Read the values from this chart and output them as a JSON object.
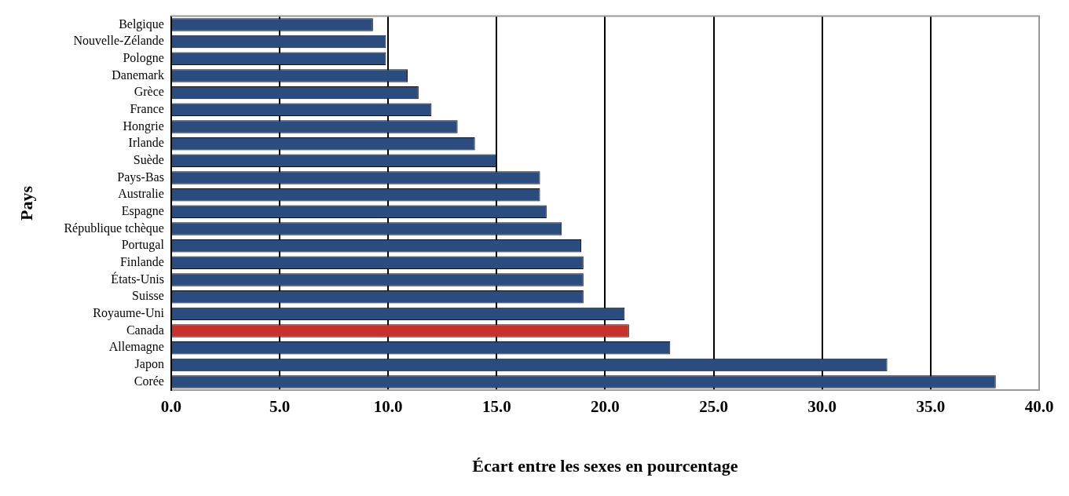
{
  "chart_data": {
    "type": "bar",
    "orientation": "horizontal",
    "xlabel": "Écart entre les sexes en pourcentage",
    "ylabel": "Pays",
    "categories": [
      "Belgique",
      "Nouvelle-Zélande",
      "Pologne",
      "Danemark",
      "Grèce",
      "France",
      "Hongrie",
      "Irlande",
      "Suède",
      "Pays-Bas",
      "Australie",
      "Espagne",
      "République tchèque",
      "Portugal",
      "Finlande",
      "États-Unis",
      "Suisse",
      "Royaume-Uni",
      "Canada",
      "Allemagne",
      "Japon",
      "Corée"
    ],
    "values": [
      9.3,
      9.9,
      9.9,
      10.9,
      11.4,
      12.0,
      13.2,
      14.0,
      15.0,
      17.0,
      17.0,
      17.3,
      18.0,
      18.9,
      19.0,
      19.0,
      19.0,
      20.9,
      21.1,
      23.0,
      33.0,
      38.0
    ],
    "colors": [
      "#2b4c7e",
      "#2b4c7e",
      "#2b4c7e",
      "#2b4c7e",
      "#2b4c7e",
      "#2b4c7e",
      "#2b4c7e",
      "#2b4c7e",
      "#2b4c7e",
      "#2b4c7e",
      "#2b4c7e",
      "#2b4c7e",
      "#2b4c7e",
      "#2b4c7e",
      "#2b4c7e",
      "#2b4c7e",
      "#2b4c7e",
      "#2b4c7e",
      "#c8302c",
      "#2b4c7e",
      "#2b4c7e",
      "#2b4c7e"
    ],
    "xlim": [
      0,
      40
    ],
    "xticks": [
      {
        "value": 0,
        "label": "0.0"
      },
      {
        "value": 5,
        "label": "5.0"
      },
      {
        "value": 10,
        "label": "10.0"
      },
      {
        "value": 15,
        "label": "15.0"
      },
      {
        "value": 20,
        "label": "20.0"
      },
      {
        "value": 25,
        "label": "25.0"
      },
      {
        "value": 30,
        "label": "30.0"
      },
      {
        "value": 35,
        "label": "35.0"
      },
      {
        "value": 40,
        "label": "40.0"
      }
    ],
    "grid": "x",
    "legend": false
  }
}
